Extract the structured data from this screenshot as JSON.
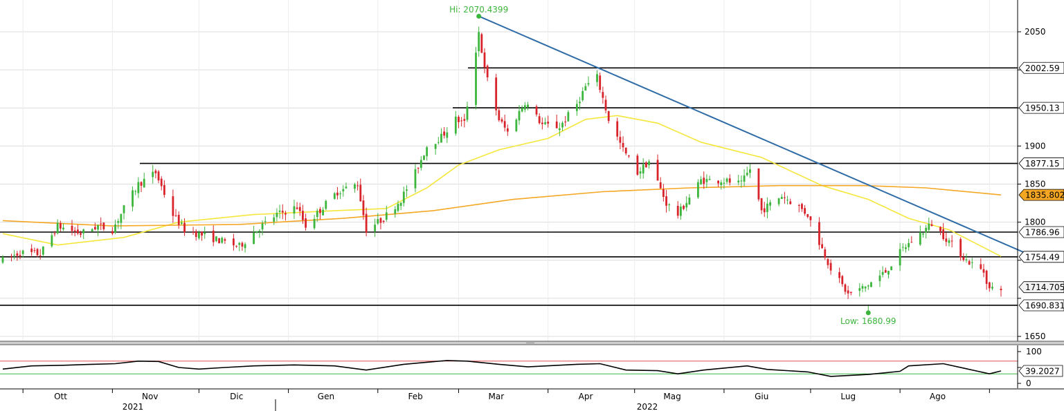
{
  "chart_data": [
    {
      "type": "candlestick",
      "title": "",
      "xlabel": "",
      "ylabel": "",
      "ylim": [
        1635,
        2085
      ],
      "yticks": [
        1650,
        1700,
        1750,
        1800,
        1850,
        1900,
        1950,
        2000,
        2050
      ],
      "ytick_labels": [
        "1650",
        "",
        "",
        "1800",
        "1850",
        "1900",
        "",
        "",
        "2050"
      ],
      "grid": true,
      "x_months": [
        "Ott",
        "Nov",
        "Dic",
        "Gen",
        "Feb",
        "Mar",
        "Apr",
        "Mag",
        "Giu",
        "Lug",
        "Ago"
      ],
      "x_years": [
        "2021",
        "2022"
      ],
      "price_keypoints": [
        [
          "2021-09-24",
          1750
        ],
        [
          "2021-09-30",
          1760
        ],
        [
          "2021-10-07",
          1758
        ],
        [
          "2021-10-13",
          1795
        ],
        [
          "2021-10-21",
          1785
        ],
        [
          "2021-10-27",
          1795
        ],
        [
          "2021-11-01",
          1790
        ],
        [
          "2021-11-05",
          1818
        ],
        [
          "2021-11-10",
          1850
        ],
        [
          "2021-11-16",
          1865
        ],
        [
          "2021-11-22",
          1810
        ],
        [
          "2021-11-26",
          1790
        ],
        [
          "2021-12-03",
          1782
        ],
        [
          "2021-12-09",
          1775
        ],
        [
          "2021-12-15",
          1768
        ],
        [
          "2021-12-21",
          1790
        ],
        [
          "2021-12-28",
          1810
        ],
        [
          "2022-01-04",
          1820
        ],
        [
          "2022-01-07",
          1795
        ],
        [
          "2022-01-13",
          1820
        ],
        [
          "2022-01-18",
          1840
        ],
        [
          "2022-01-25",
          1850
        ],
        [
          "2022-01-28",
          1790
        ],
        [
          "2022-02-03",
          1805
        ],
        [
          "2022-02-09",
          1830
        ],
        [
          "2022-02-14",
          1865
        ],
        [
          "2022-02-18",
          1900
        ],
        [
          "2022-02-23",
          1912
        ],
        [
          "2022-02-28",
          1935
        ],
        [
          "2022-03-03",
          1930
        ],
        [
          "2022-03-08",
          2050
        ],
        [
          "2022-03-10",
          2000
        ],
        [
          "2022-03-15",
          1935
        ],
        [
          "2022-03-18",
          1918
        ],
        [
          "2022-03-24",
          1958
        ],
        [
          "2022-03-30",
          1928
        ],
        [
          "2022-04-05",
          1925
        ],
        [
          "2022-04-11",
          1955
        ],
        [
          "2022-04-14",
          1978
        ],
        [
          "2022-04-18",
          1990
        ],
        [
          "2022-04-22",
          1935
        ],
        [
          "2022-04-27",
          1895
        ],
        [
          "2022-05-02",
          1865
        ],
        [
          "2022-05-06",
          1880
        ],
        [
          "2022-05-12",
          1825
        ],
        [
          "2022-05-16",
          1810
        ],
        [
          "2022-05-24",
          1855
        ],
        [
          "2022-05-31",
          1855
        ],
        [
          "2022-06-07",
          1850
        ],
        [
          "2022-06-10",
          1870
        ],
        [
          "2022-06-14",
          1815
        ],
        [
          "2022-06-21",
          1835
        ],
        [
          "2022-06-27",
          1820
        ],
        [
          "2022-06-30",
          1810
        ],
        [
          "2022-07-05",
          1765
        ],
        [
          "2022-07-08",
          1740
        ],
        [
          "2022-07-14",
          1705
        ],
        [
          "2022-07-20",
          1715
        ],
        [
          "2022-07-27",
          1735
        ],
        [
          "2022-08-02",
          1765
        ],
        [
          "2022-08-08",
          1785
        ],
        [
          "2022-08-12",
          1798
        ],
        [
          "2022-08-18",
          1775
        ],
        [
          "2022-08-24",
          1750
        ],
        [
          "2022-08-30",
          1735
        ],
        [
          "2022-09-01",
          1712
        ],
        [
          "2022-09-05",
          1714.7051
        ]
      ],
      "series": [
        {
          "name": "",
          "color": "#f5e63a",
          "values": [
            [
              "2021-09-24",
              1785
            ],
            [
              "2021-10-13",
              1770
            ],
            [
              "2021-11-05",
              1780
            ],
            [
              "2021-11-24",
              1800
            ],
            [
              "2021-12-20",
              1810
            ],
            [
              "2022-01-17",
              1815
            ],
            [
              "2022-02-04",
              1818
            ],
            [
              "2022-02-18",
              1845
            ],
            [
              "2022-03-01",
              1875
            ],
            [
              "2022-03-15",
              1895
            ],
            [
              "2022-04-01",
              1910
            ],
            [
              "2022-04-14",
              1935
            ],
            [
              "2022-04-25",
              1940
            ],
            [
              "2022-05-09",
              1930
            ],
            [
              "2022-05-24",
              1905
            ],
            [
              "2022-06-14",
              1885
            ],
            [
              "2022-07-05",
              1848
            ],
            [
              "2022-07-21",
              1830
            ],
            [
              "2022-08-04",
              1805
            ],
            [
              "2022-08-18",
              1790
            ],
            [
              "2022-09-05",
              1755
            ]
          ]
        },
        {
          "name": "",
          "color": "#f5a623",
          "values": [
            [
              "2021-09-24",
              1802
            ],
            [
              "2021-11-01",
              1795
            ],
            [
              "2021-12-15",
              1797
            ],
            [
              "2022-01-20",
              1805
            ],
            [
              "2022-02-20",
              1815
            ],
            [
              "2022-03-20",
              1830
            ],
            [
              "2022-04-20",
              1840
            ],
            [
              "2022-05-20",
              1845
            ],
            [
              "2022-06-20",
              1848
            ],
            [
              "2022-07-20",
              1848
            ],
            [
              "2022-08-10",
              1845
            ],
            [
              "2022-09-05",
              1835.8024
            ]
          ],
          "last_value": "1835.8024"
        }
      ],
      "levels": [
        {
          "value": 2002.59,
          "label": "2002.59"
        },
        {
          "value": 1950.13,
          "label": "1950.13"
        },
        {
          "value": 1877.15,
          "label": "1877.15"
        },
        {
          "value": 1786.96,
          "label": "1786.96"
        },
        {
          "value": 1754.49,
          "label": "1754.49"
        },
        {
          "value": 1690.8317,
          "label": "1690.8317"
        }
      ],
      "last_price_label": "1714.7051",
      "trendline": {
        "start": [
          "2022-03-08",
          2070.4399
        ],
        "end": [
          "2022-09-15",
          1757
        ],
        "color": "#2f6ca6"
      },
      "annotations": [
        {
          "date": "2022-03-08",
          "value": 2070.4399,
          "text": "Hi: 2070.4399"
        },
        {
          "date": "2022-07-21",
          "value": 1680.99,
          "text": "Low: 1680.99"
        }
      ]
    },
    {
      "type": "line",
      "title": "",
      "ylim": [
        0,
        100
      ],
      "yticks": [
        0,
        50,
        100
      ],
      "ytick_labels": [
        "0",
        "",
        "100"
      ],
      "overbought": 70,
      "oversold": 30,
      "current_value": "39.2027",
      "values": [
        [
          "2021-09-24",
          45
        ],
        [
          "2021-10-04",
          55
        ],
        [
          "2021-10-15",
          57
        ],
        [
          "2021-10-25",
          60
        ],
        [
          "2021-11-02",
          62
        ],
        [
          "2021-11-10",
          70
        ],
        [
          "2021-11-17",
          69
        ],
        [
          "2021-11-24",
          50
        ],
        [
          "2021-12-01",
          45
        ],
        [
          "2021-12-10",
          50
        ],
        [
          "2021-12-20",
          55
        ],
        [
          "2022-01-03",
          58
        ],
        [
          "2022-01-17",
          55
        ],
        [
          "2022-01-28",
          42
        ],
        [
          "2022-02-10",
          60
        ],
        [
          "2022-02-20",
          68
        ],
        [
          "2022-02-25",
          72
        ],
        [
          "2022-03-04",
          70
        ],
        [
          "2022-03-15",
          60
        ],
        [
          "2022-03-25",
          52
        ],
        [
          "2022-04-11",
          60
        ],
        [
          "2022-04-19",
          62
        ],
        [
          "2022-04-28",
          42
        ],
        [
          "2022-05-09",
          40
        ],
        [
          "2022-05-16",
          30
        ],
        [
          "2022-05-25",
          42
        ],
        [
          "2022-06-09",
          55
        ],
        [
          "2022-06-16",
          44
        ],
        [
          "2022-06-30",
          36
        ],
        [
          "2022-07-08",
          22
        ],
        [
          "2022-07-21",
          28
        ],
        [
          "2022-08-01",
          38
        ],
        [
          "2022-08-04",
          55
        ],
        [
          "2022-08-16",
          62
        ],
        [
          "2022-08-24",
          46
        ],
        [
          "2022-09-01",
          30
        ],
        [
          "2022-09-05",
          39.2
        ]
      ]
    }
  ]
}
